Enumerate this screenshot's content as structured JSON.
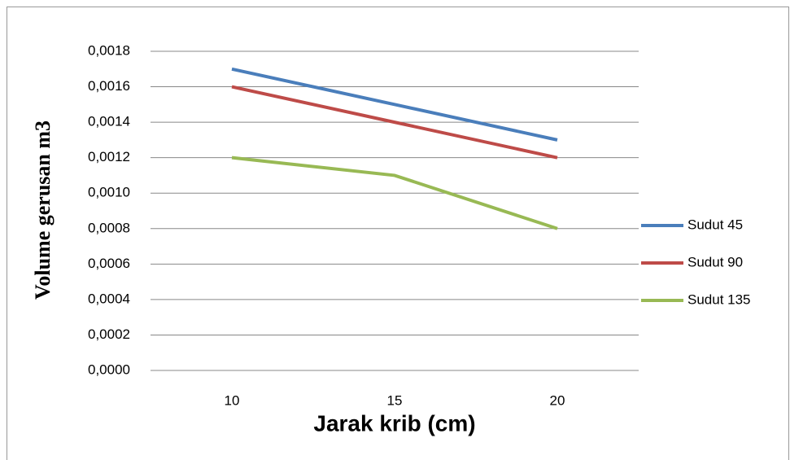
{
  "chart_data": {
    "type": "line",
    "x_label": "Jarak krib (cm)",
    "y_label": "Volume gerusan m3",
    "categories": [
      "10",
      "15",
      "20"
    ],
    "series": [
      {
        "name": "Sudut 45",
        "color": "#4a7ebb",
        "values": [
          0.0017,
          0.0015,
          0.0013
        ]
      },
      {
        "name": "Sudut 90",
        "color": "#be4b48",
        "values": [
          0.0016,
          0.0014,
          0.0012
        ]
      },
      {
        "name": "Sudut 135",
        "color": "#98b954",
        "values": [
          0.0012,
          0.0011,
          0.0008
        ]
      }
    ],
    "ylim": [
      0,
      0.0018
    ],
    "yticks": [
      {
        "value": 0,
        "label": "0,0000"
      },
      {
        "value": 0.0002,
        "label": "0,0002"
      },
      {
        "value": 0.0004,
        "label": "0,0004"
      },
      {
        "value": 0.0006,
        "label": "0,0006"
      },
      {
        "value": 0.0008,
        "label": "0,0008"
      },
      {
        "value": 0.001,
        "label": "0,0010"
      },
      {
        "value": 0.0012,
        "label": "0,0012"
      },
      {
        "value": 0.0014,
        "label": "0,0014"
      },
      {
        "value": 0.0016,
        "label": "0,0016"
      },
      {
        "value": 0.0018,
        "label": "0,0018"
      }
    ],
    "grid": true,
    "legend": "right"
  }
}
